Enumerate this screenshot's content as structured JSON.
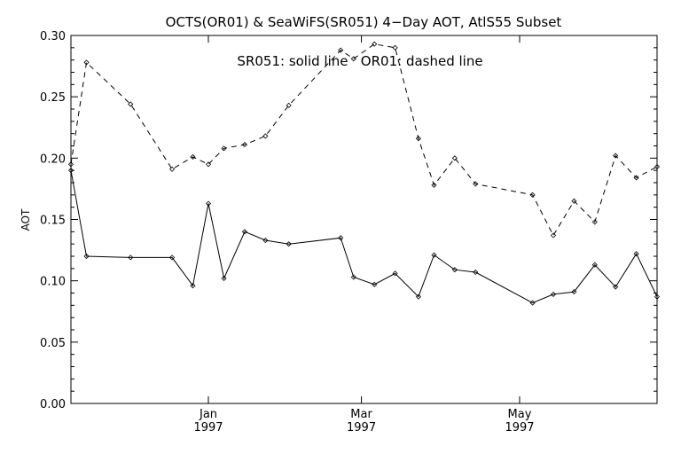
{
  "chart_data": {
    "type": "line",
    "title": "OCTS(OR01) & SeaWiFS(SR051) 4−Day AOT, AtlS55 Subset",
    "annotation": "SR051: solid line   OR01: dashed line",
    "xlabel": "",
    "ylabel": "AOT",
    "ylim": [
      0.0,
      0.3
    ],
    "y_ticks": [
      "0.00",
      "0.05",
      "0.10",
      "0.15",
      "0.20",
      "0.25",
      "0.30"
    ],
    "x_ticks": [
      {
        "month": "Jan",
        "year": "1997",
        "day": 53
      },
      {
        "month": "Mar",
        "year": "1997",
        "day": 112
      },
      {
        "month": "May",
        "year": "1997",
        "day": 173
      }
    ],
    "x_range_days": [
      0,
      226
    ],
    "x_unit": "days since 1996-11-09",
    "grid": false,
    "series": [
      {
        "name": "SR051",
        "line_style": "solid",
        "x": [
          0,
          6,
          23,
          39,
          47,
          53,
          59,
          67,
          75,
          84,
          104,
          109,
          117,
          125,
          134,
          140,
          148,
          156,
          178,
          186,
          194,
          202,
          210,
          218,
          226
        ],
        "values": [
          0.19,
          0.12,
          0.119,
          0.119,
          0.096,
          0.163,
          0.102,
          0.14,
          0.133,
          0.13,
          0.135,
          0.103,
          0.097,
          0.106,
          0.087,
          0.121,
          0.109,
          0.107,
          0.082,
          0.089,
          0.091,
          0.113,
          0.095,
          0.122,
          0.087
        ]
      },
      {
        "name": "OR01",
        "line_style": "dashed",
        "x": [
          0,
          6,
          23,
          39,
          47,
          53,
          59,
          67,
          75,
          84,
          104,
          109,
          117,
          125,
          134,
          140,
          148,
          156,
          178,
          186,
          194,
          202,
          210,
          218,
          226
        ],
        "values": [
          0.195,
          0.278,
          0.244,
          0.191,
          0.201,
          0.195,
          0.208,
          0.211,
          0.218,
          0.243,
          0.288,
          0.281,
          0.293,
          0.29,
          0.216,
          0.178,
          0.2,
          0.179,
          0.17,
          0.137,
          0.165,
          0.148,
          0.202,
          0.184,
          0.193
        ]
      }
    ]
  }
}
